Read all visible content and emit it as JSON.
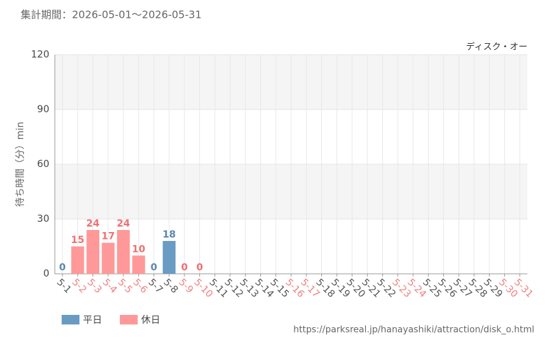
{
  "chart_data": {
    "type": "bar",
    "title": "集計期間：2026-05-01～2026-05-31",
    "subtitle": "ディスク・オー",
    "y_label": "待ち時間（分）min",
    "source": "https://parksreal.jp/hanayashiki/attraction/disk_o.html",
    "categories": [
      "5-1",
      "5-2",
      "5-3",
      "5-4",
      "5-5",
      "5-6",
      "5-7",
      "5-8",
      "5-9",
      "5-10",
      "5-11",
      "5-12",
      "5-13",
      "5-14",
      "5-15",
      "5-16",
      "5-17",
      "5-18",
      "5-19",
      "5-20",
      "5-21",
      "5-22",
      "5-23",
      "5-24",
      "5-25",
      "5-26",
      "5-27",
      "5-28",
      "5-29",
      "5-30",
      "5-31"
    ],
    "category_label_colors": [
      "#555555",
      "#f08080",
      "#f08080",
      "#f08080",
      "#f08080",
      "#f08080",
      "#555555",
      "#555555",
      "#f08080",
      "#f08080",
      "#555555",
      "#555555",
      "#555555",
      "#555555",
      "#555555",
      "#f08080",
      "#f08080",
      "#555555",
      "#555555",
      "#555555",
      "#555555",
      "#555555",
      "#f08080",
      "#f08080",
      "#555555",
      "#555555",
      "#555555",
      "#555555",
      "#555555",
      "#f08080",
      "#f08080"
    ],
    "series": [
      {
        "name": "平日",
        "color": "#6a9bc3",
        "label_color": "#5a87b0",
        "values": [
          0,
          null,
          null,
          null,
          null,
          null,
          0,
          18,
          null,
          null,
          null,
          null,
          null,
          null,
          null,
          null,
          null,
          null,
          null,
          null,
          null,
          null,
          null,
          null,
          null,
          null,
          null,
          null,
          null,
          null,
          null
        ]
      },
      {
        "name": "休日",
        "color": "#ff9999",
        "label_color": "#f07070",
        "values": [
          null,
          15,
          24,
          17,
          24,
          10,
          null,
          null,
          0,
          0,
          null,
          null,
          null,
          null,
          null,
          null,
          null,
          null,
          null,
          null,
          null,
          null,
          null,
          null,
          null,
          null,
          null,
          null,
          null,
          null,
          null
        ]
      }
    ],
    "ylim": [
      0,
      120
    ],
    "yticks": [
      0,
      30,
      60,
      90,
      120
    ],
    "grid": true
  }
}
